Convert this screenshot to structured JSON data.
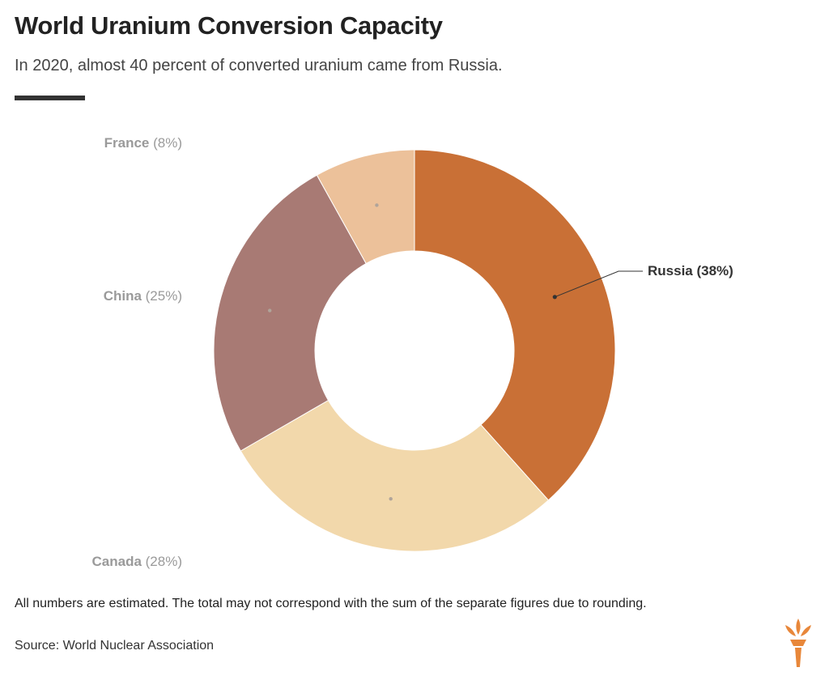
{
  "title": "World Uranium Conversion Capacity",
  "subtitle": "In 2020, almost 40 percent of converted uranium came from Russia.",
  "note": "All numbers are estimated. The total may not correspond with the sum of the separate figures due to rounding.",
  "source": "Source: World Nuclear Association",
  "logo_icon": "rferl-torch-logo",
  "colors": {
    "highlight_label": "#333333",
    "muted_label": "#9a9a9a",
    "logo": "#e8873a"
  },
  "chart_data": {
    "type": "pie",
    "variant": "donut",
    "slices": [
      {
        "name": "Russia",
        "pct_label": "(38%)",
        "value": 38,
        "color": "#c97036",
        "highlight": true
      },
      {
        "name": "Canada",
        "pct_label": "(28%)",
        "value": 28,
        "color": "#f2d8ab",
        "highlight": false
      },
      {
        "name": "China",
        "pct_label": "(25%)",
        "value": 25,
        "color": "#a87a74",
        "highlight": false
      },
      {
        "name": "France",
        "pct_label": "(8%)",
        "value": 8,
        "color": "#ecc19a",
        "highlight": false
      }
    ]
  }
}
